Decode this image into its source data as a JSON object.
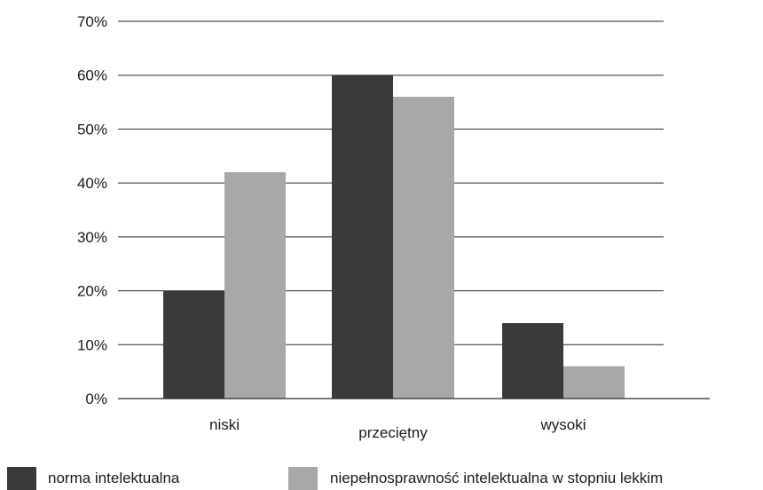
{
  "chart_data": {
    "type": "bar",
    "categories": [
      "niski",
      "przeciętny",
      "wysoki"
    ],
    "series": [
      {
        "name": "norma intelektualna",
        "color": "#3a3a3a",
        "values": [
          20,
          60,
          14
        ]
      },
      {
        "name": "niepełnosprawność intelektualna w stopniu lekkim",
        "color": "#a7a8aa",
        "values": [
          42,
          56,
          6
        ]
      }
    ],
    "ylim": [
      0,
      70
    ],
    "yticks": [
      "0%",
      "10%",
      "20%",
      "30%",
      "40%",
      "50%",
      "60%",
      "70%"
    ],
    "ytick_values": [
      0,
      10,
      20,
      30,
      40,
      50,
      60,
      70
    ],
    "grid": true,
    "legend_position": "bottom",
    "title": "",
    "xlabel": "",
    "ylabel": ""
  }
}
